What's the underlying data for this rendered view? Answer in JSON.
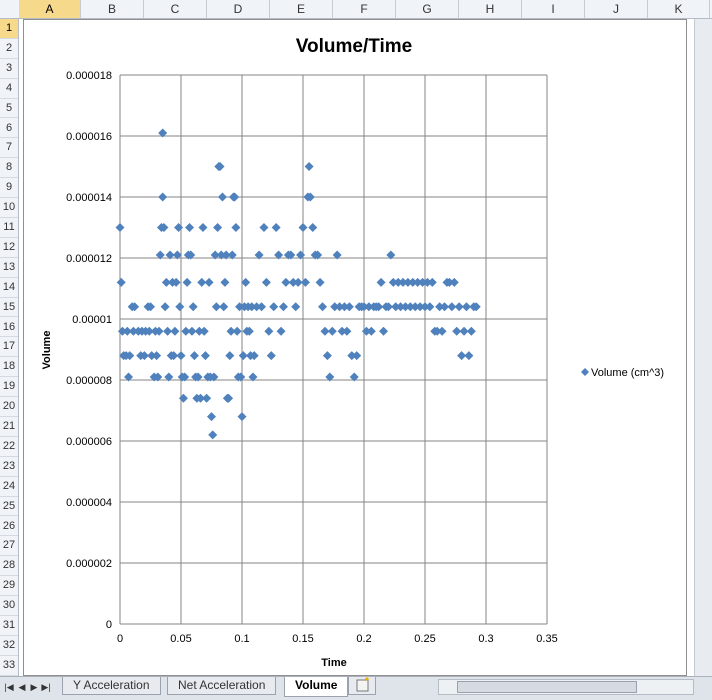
{
  "columns": [
    "A",
    "B",
    "C",
    "D",
    "E",
    "F",
    "G",
    "H",
    "I",
    "J",
    "K"
  ],
  "selected_column": "A",
  "rows": [
    "1",
    "2",
    "3",
    "4",
    "5",
    "6",
    "7",
    "8",
    "9",
    "10",
    "11",
    "12",
    "13",
    "14",
    "15",
    "16",
    "17",
    "18",
    "19",
    "20",
    "21",
    "22",
    "23",
    "24",
    "25",
    "26",
    "27",
    "28",
    "29",
    "30",
    "31",
    "32",
    "33"
  ],
  "selected_row": "1",
  "sheet_tabs": [
    "Y Acceleration",
    "Net Acceleration",
    "Volume"
  ],
  "active_tab": "Volume",
  "chart_data": {
    "type": "scatter",
    "title": "Volume/Time",
    "xlabel": "Time",
    "ylabel": "Volume",
    "xlim": [
      0,
      0.35
    ],
    "ylim": [
      0,
      1.8e-05
    ],
    "x_ticks": [
      "0",
      "0.05",
      "0.1",
      "0.15",
      "0.2",
      "0.25",
      "0.3",
      "0.35"
    ],
    "y_ticks": [
      "0",
      "0.000002",
      "0.000004",
      "0.000006",
      "0.000008",
      "0.00001",
      "0.000012",
      "0.000014",
      "0.000016",
      "0.000018"
    ],
    "grid": true,
    "legend_position": "right",
    "marker_color": "#4f81bd",
    "series": [
      {
        "name": "Volume (cm^3)",
        "points": [
          [
            0.0,
            1.3e-05
          ],
          [
            0.001,
            1.12e-05
          ],
          [
            0.002,
            9.6e-06
          ],
          [
            0.003,
            8.8e-06
          ],
          [
            0.005,
            8.8e-06
          ],
          [
            0.006,
            9.6e-06
          ],
          [
            0.007,
            8.1e-06
          ],
          [
            0.008,
            8.8e-06
          ],
          [
            0.01,
            1.04e-05
          ],
          [
            0.011,
            9.6e-06
          ],
          [
            0.012,
            1.04e-05
          ],
          [
            0.015,
            9.6e-06
          ],
          [
            0.017,
            8.8e-06
          ],
          [
            0.018,
            9.6e-06
          ],
          [
            0.02,
            8.8e-06
          ],
          [
            0.021,
            9.6e-06
          ],
          [
            0.023,
            1.04e-05
          ],
          [
            0.024,
            9.6e-06
          ],
          [
            0.025,
            1.04e-05
          ],
          [
            0.026,
            8.8e-06
          ],
          [
            0.028,
            8.1e-06
          ],
          [
            0.029,
            9.6e-06
          ],
          [
            0.03,
            8.8e-06
          ],
          [
            0.031,
            8.1e-06
          ],
          [
            0.032,
            9.6e-06
          ],
          [
            0.033,
            1.21e-05
          ],
          [
            0.034,
            1.3e-05
          ],
          [
            0.035,
            1.61e-05
          ],
          [
            0.035,
            1.4e-05
          ],
          [
            0.036,
            1.3e-05
          ],
          [
            0.037,
            1.04e-05
          ],
          [
            0.038,
            1.12e-05
          ],
          [
            0.039,
            9.6e-06
          ],
          [
            0.04,
            8.1e-06
          ],
          [
            0.041,
            1.21e-05
          ],
          [
            0.042,
            8.8e-06
          ],
          [
            0.043,
            1.12e-05
          ],
          [
            0.044,
            8.8e-06
          ],
          [
            0.045,
            9.6e-06
          ],
          [
            0.046,
            1.12e-05
          ],
          [
            0.047,
            1.21e-05
          ],
          [
            0.048,
            1.3e-05
          ],
          [
            0.049,
            1.04e-05
          ],
          [
            0.05,
            8.8e-06
          ],
          [
            0.051,
            8.1e-06
          ],
          [
            0.052,
            7.4e-06
          ],
          [
            0.053,
            8.1e-06
          ],
          [
            0.054,
            9.6e-06
          ],
          [
            0.055,
            1.12e-05
          ],
          [
            0.056,
            1.21e-05
          ],
          [
            0.057,
            1.3e-05
          ],
          [
            0.058,
            1.21e-05
          ],
          [
            0.059,
            9.6e-06
          ],
          [
            0.06,
            1.04e-05
          ],
          [
            0.061,
            8.8e-06
          ],
          [
            0.062,
            8.1e-06
          ],
          [
            0.063,
            7.4e-06
          ],
          [
            0.064,
            8.1e-06
          ],
          [
            0.065,
            9.6e-06
          ],
          [
            0.066,
            7.4e-06
          ],
          [
            0.067,
            1.12e-05
          ],
          [
            0.068,
            1.3e-05
          ],
          [
            0.069,
            9.6e-06
          ],
          [
            0.07,
            8.8e-06
          ],
          [
            0.071,
            7.4e-06
          ],
          [
            0.072,
            8.1e-06
          ],
          [
            0.073,
            1.12e-05
          ],
          [
            0.074,
            8.1e-06
          ],
          [
            0.075,
            6.8e-06
          ],
          [
            0.076,
            6.2e-06
          ],
          [
            0.077,
            8.1e-06
          ],
          [
            0.078,
            1.21e-05
          ],
          [
            0.079,
            1.04e-05
          ],
          [
            0.08,
            1.3e-05
          ],
          [
            0.081,
            1.5e-05
          ],
          [
            0.082,
            1.5e-05
          ],
          [
            0.083,
            1.21e-05
          ],
          [
            0.084,
            1.4e-05
          ],
          [
            0.085,
            1.04e-05
          ],
          [
            0.086,
            1.12e-05
          ],
          [
            0.087,
            1.21e-05
          ],
          [
            0.088,
            7.4e-06
          ],
          [
            0.089,
            7.4e-06
          ],
          [
            0.09,
            8.8e-06
          ],
          [
            0.091,
            9.6e-06
          ],
          [
            0.092,
            1.21e-05
          ],
          [
            0.093,
            1.4e-05
          ],
          [
            0.094,
            1.4e-05
          ],
          [
            0.095,
            1.3e-05
          ],
          [
            0.096,
            9.6e-06
          ],
          [
            0.097,
            8.1e-06
          ],
          [
            0.098,
            1.04e-05
          ],
          [
            0.099,
            8.1e-06
          ],
          [
            0.1,
            6.8e-06
          ],
          [
            0.101,
            8.8e-06
          ],
          [
            0.102,
            1.04e-05
          ],
          [
            0.103,
            1.12e-05
          ],
          [
            0.104,
            9.6e-06
          ],
          [
            0.105,
            1.04e-05
          ],
          [
            0.106,
            9.6e-06
          ],
          [
            0.107,
            8.8e-06
          ],
          [
            0.108,
            1.04e-05
          ],
          [
            0.109,
            8.1e-06
          ],
          [
            0.11,
            8.8e-06
          ],
          [
            0.112,
            1.04e-05
          ],
          [
            0.114,
            1.21e-05
          ],
          [
            0.116,
            1.04e-05
          ],
          [
            0.118,
            1.3e-05
          ],
          [
            0.12,
            1.12e-05
          ],
          [
            0.122,
            9.6e-06
          ],
          [
            0.124,
            8.8e-06
          ],
          [
            0.126,
            1.04e-05
          ],
          [
            0.128,
            1.3e-05
          ],
          [
            0.13,
            1.21e-05
          ],
          [
            0.132,
            9.6e-06
          ],
          [
            0.134,
            1.04e-05
          ],
          [
            0.136,
            1.12e-05
          ],
          [
            0.138,
            1.21e-05
          ],
          [
            0.14,
            1.21e-05
          ],
          [
            0.142,
            1.12e-05
          ],
          [
            0.144,
            1.04e-05
          ],
          [
            0.146,
            1.12e-05
          ],
          [
            0.148,
            1.21e-05
          ],
          [
            0.15,
            1.3e-05
          ],
          [
            0.152,
            1.12e-05
          ],
          [
            0.154,
            1.4e-05
          ],
          [
            0.155,
            1.5e-05
          ],
          [
            0.156,
            1.4e-05
          ],
          [
            0.158,
            1.3e-05
          ],
          [
            0.16,
            1.21e-05
          ],
          [
            0.162,
            1.21e-05
          ],
          [
            0.164,
            1.12e-05
          ],
          [
            0.166,
            1.04e-05
          ],
          [
            0.168,
            9.6e-06
          ],
          [
            0.17,
            8.8e-06
          ],
          [
            0.172,
            8.1e-06
          ],
          [
            0.174,
            9.6e-06
          ],
          [
            0.176,
            1.04e-05
          ],
          [
            0.178,
            1.21e-05
          ],
          [
            0.18,
            1.04e-05
          ],
          [
            0.182,
            9.6e-06
          ],
          [
            0.184,
            1.04e-05
          ],
          [
            0.186,
            9.6e-06
          ],
          [
            0.188,
            1.04e-05
          ],
          [
            0.19,
            8.8e-06
          ],
          [
            0.192,
            8.1e-06
          ],
          [
            0.194,
            8.8e-06
          ],
          [
            0.196,
            1.04e-05
          ],
          [
            0.198,
            1.04e-05
          ],
          [
            0.2,
            1.04e-05
          ],
          [
            0.202,
            9.6e-06
          ],
          [
            0.204,
            1.04e-05
          ],
          [
            0.206,
            9.6e-06
          ],
          [
            0.208,
            1.04e-05
          ],
          [
            0.21,
            1.04e-05
          ],
          [
            0.212,
            1.04e-05
          ],
          [
            0.214,
            1.12e-05
          ],
          [
            0.216,
            9.6e-06
          ],
          [
            0.218,
            1.04e-05
          ],
          [
            0.22,
            1.04e-05
          ],
          [
            0.222,
            1.21e-05
          ],
          [
            0.224,
            1.12e-05
          ],
          [
            0.226,
            1.04e-05
          ],
          [
            0.228,
            1.12e-05
          ],
          [
            0.23,
            1.04e-05
          ],
          [
            0.232,
            1.12e-05
          ],
          [
            0.234,
            1.04e-05
          ],
          [
            0.236,
            1.12e-05
          ],
          [
            0.238,
            1.04e-05
          ],
          [
            0.24,
            1.12e-05
          ],
          [
            0.242,
            1.04e-05
          ],
          [
            0.244,
            1.12e-05
          ],
          [
            0.246,
            1.04e-05
          ],
          [
            0.248,
            1.12e-05
          ],
          [
            0.25,
            1.04e-05
          ],
          [
            0.252,
            1.12e-05
          ],
          [
            0.254,
            1.04e-05
          ],
          [
            0.256,
            1.12e-05
          ],
          [
            0.258,
            9.6e-06
          ],
          [
            0.26,
            9.6e-06
          ],
          [
            0.262,
            1.04e-05
          ],
          [
            0.264,
            9.6e-06
          ],
          [
            0.266,
            1.04e-05
          ],
          [
            0.268,
            1.12e-05
          ],
          [
            0.27,
            1.12e-05
          ],
          [
            0.272,
            1.04e-05
          ],
          [
            0.274,
            1.12e-05
          ],
          [
            0.276,
            9.6e-06
          ],
          [
            0.278,
            1.04e-05
          ],
          [
            0.28,
            8.8e-06
          ],
          [
            0.282,
            9.6e-06
          ],
          [
            0.284,
            1.04e-05
          ],
          [
            0.286,
            8.8e-06
          ],
          [
            0.288,
            9.6e-06
          ],
          [
            0.29,
            1.04e-05
          ],
          [
            0.292,
            1.04e-05
          ]
        ]
      }
    ]
  }
}
